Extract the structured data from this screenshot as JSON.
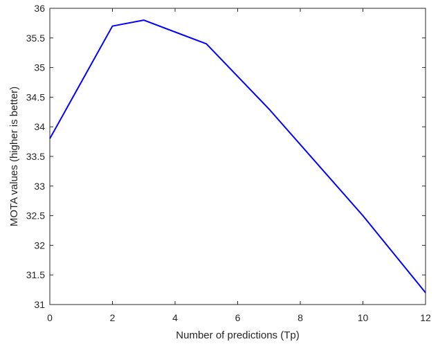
{
  "chart_data": {
    "type": "line",
    "title": "",
    "xlabel": "Number of predictions (Tp)",
    "ylabel": "MOTA values (higher is better)",
    "xlim": [
      0,
      12
    ],
    "ylim": [
      31,
      36
    ],
    "xticks": [
      0,
      2,
      4,
      6,
      8,
      10,
      12
    ],
    "yticks": [
      31,
      31.5,
      32,
      32.5,
      33,
      33.5,
      34,
      34.5,
      35,
      35.5,
      36
    ],
    "xtick_labels": [
      "0",
      "2",
      "4",
      "6",
      "8",
      "10",
      "12"
    ],
    "ytick_labels": [
      "31",
      "31.5",
      "32",
      "32.5",
      "33",
      "33.5",
      "34",
      "34.5",
      "35",
      "35.5",
      "36"
    ],
    "grid": false,
    "series": [
      {
        "color": "#0000ff",
        "x": [
          0,
          2,
          3,
          5,
          7,
          10,
          12
        ],
        "y": [
          33.8,
          35.7,
          35.8,
          35.4,
          34.3,
          32.5,
          31.2
        ]
      }
    ]
  }
}
